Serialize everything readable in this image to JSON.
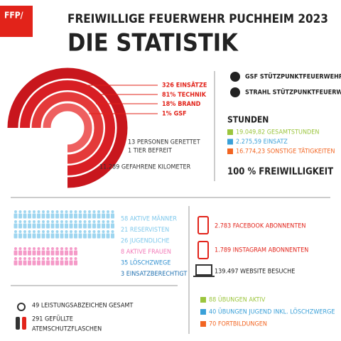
{
  "header": {
    "logo": "FFP/",
    "title": "FREIWILLIGE FEUERWEHR PUCHHEIM 2023",
    "subtitle": "DIE STATISTIK"
  },
  "operations": {
    "items": [
      "326 EINSÄTZE",
      "81% TECHNIK",
      "18% BRAND",
      "1% GSF"
    ],
    "rescued": [
      "13 PERSONEN GERETTET",
      "1 TIER BEFREIT"
    ],
    "km": "11.289 GEFAHRENE KILOMETER"
  },
  "roles": [
    "GSF STÜTZPUNKTFEUERWEHR",
    "STRAHL STÜTZPUNKTFEUERWEHR"
  ],
  "hours": {
    "title": "STUNDEN",
    "items": [
      "19.049,82 GESAMTSTUNDEN",
      "2.275,59 EINSATZ",
      "16.774,23 SONSTIGE TÄTIGKEITEN"
    ],
    "footer": "100 % FREIWILLIGKEIT"
  },
  "members": [
    "58 AKTIVE MÄNNER",
    "21 RESERVISTEN",
    "26 JUGENDLICHE",
    "8 AKTIVE FRAUEN",
    "35 LÖSCHZWEGE",
    "3 EINSATZBERECHTIGT"
  ],
  "social": [
    "2.783 FACEBOOK ABONNENTEN",
    "1.789 INSTAGRAM ABONNENTEN",
    "139.497 WEBSITE BESUCHE"
  ],
  "misc": {
    "badges": "49 LEISTUNGSABZEICHEN GESAMT",
    "tanks": [
      "291 GEFÜLLTE",
      "ATEMSCHUTZFLASCHEN"
    ]
  },
  "training": [
    "88 ÜBUNGEN AKTIV",
    "40 ÜBUNGEN JUGEND INKL. LÖSCHZWERGE",
    "70 FORTBILDUNGEN"
  ]
}
